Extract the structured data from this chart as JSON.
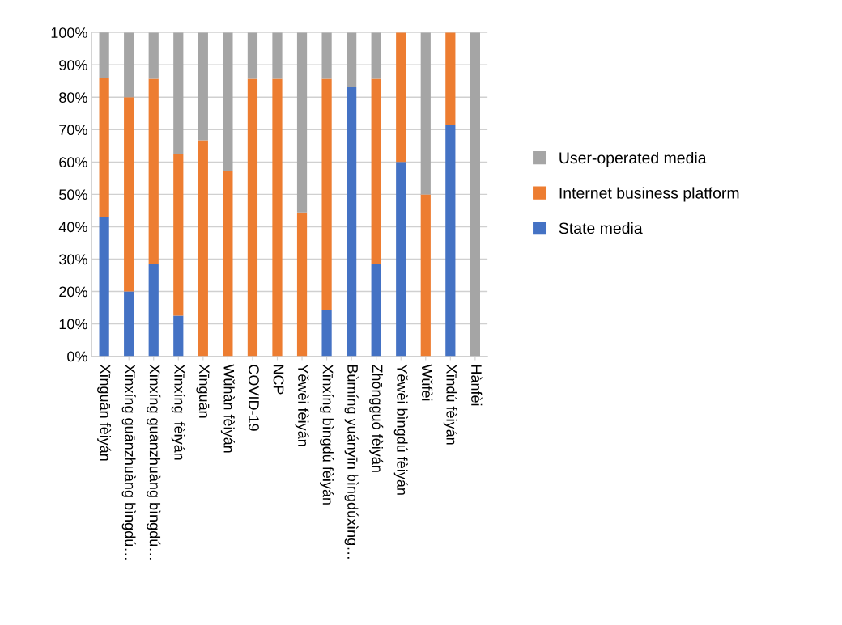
{
  "chart_data": {
    "type": "bar",
    "stacked": true,
    "categories": [
      "Xīnguān fèiyán",
      "Xīnxíng guānzhuàng bìngdú…",
      "Xīnxíng guānzhuàng bìngdú…",
      "Xīnxíng  fèiyán",
      "Xīnguān",
      "Wǔhàn fèiyán",
      "COVID-19",
      "NCP",
      "Yěwèi fèiyán",
      "Xīnxíng bìngdú fèiyán",
      "Bùmíng yuányīn bìngdúxìng…",
      "Zhōngguó fèiyán",
      "Yěwèi bìngdú fèiyán",
      "Wǔfèi",
      "Xīndú fèiyán",
      "Hànfèi"
    ],
    "series": [
      {
        "name": "State media",
        "color": "#4472c4",
        "values": [
          42.9,
          20,
          28.6,
          12.5,
          0,
          0,
          0,
          0,
          0,
          14.3,
          83.3,
          28.6,
          60,
          0,
          71.4,
          0
        ]
      },
      {
        "name": "Internet business platform",
        "color": "#ed7d31",
        "values": [
          42.9,
          60,
          57.1,
          50,
          66.7,
          57.1,
          85.7,
          85.7,
          44.4,
          71.4,
          0,
          57.1,
          40,
          50,
          28.6,
          0
        ]
      },
      {
        "name": "User-operated media",
        "color": "#a5a5a5",
        "values": [
          14.3,
          20,
          14.3,
          37.5,
          33.3,
          42.9,
          14.3,
          14.3,
          55.6,
          14.3,
          16.7,
          14.3,
          0,
          50,
          0,
          100
        ]
      }
    ],
    "ylim": [
      0,
      100
    ],
    "yticks": [
      {
        "value": 0,
        "label": "0%"
      },
      {
        "value": 10,
        "label": "10%"
      },
      {
        "value": 20,
        "label": "20%"
      },
      {
        "value": 30,
        "label": "30%"
      },
      {
        "value": 40,
        "label": "40%"
      },
      {
        "value": 50,
        "label": "50%"
      },
      {
        "value": 60,
        "label": "60%"
      },
      {
        "value": 70,
        "label": "70%"
      },
      {
        "value": 80,
        "label": "80%"
      },
      {
        "value": 90,
        "label": "90%"
      },
      {
        "value": 100,
        "label": "100%"
      }
    ],
    "grid": "y",
    "legend": "right"
  }
}
